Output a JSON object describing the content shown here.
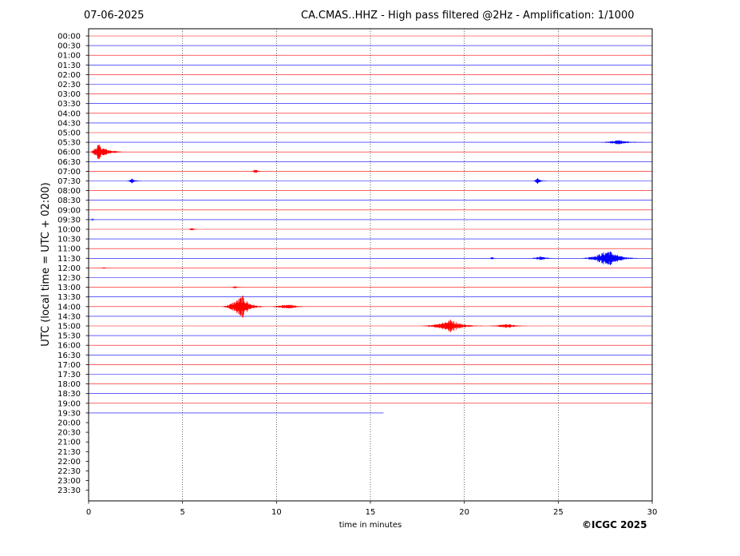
{
  "header": {
    "date": "07-06-2025",
    "title": "CA.CMAS..HHZ - High pass filtered @2Hz - Amplification: 1/1000"
  },
  "copyright": "©ICGC 2025",
  "colors": {
    "odd_rows": "#ff0000",
    "even_rows": "#0000ff",
    "grid": "#000000"
  },
  "chart_data": {
    "type": "line",
    "title": "CA.CMAS..HHZ - High pass filtered @2Hz - Amplification: 1/1000",
    "xlabel": "time in minutes",
    "ylabel": "UTC (local time = UTC + 02:00)",
    "xlim": [
      0,
      30
    ],
    "x_ticks": [
      "0",
      "5",
      "10",
      "15",
      "20",
      "25",
      "30"
    ],
    "rows": [
      "00:00",
      "00:30",
      "01:00",
      "01:30",
      "02:00",
      "02:30",
      "03:00",
      "03:30",
      "04:00",
      "04:30",
      "05:00",
      "05:30",
      "06:00",
      "06:30",
      "07:00",
      "07:30",
      "08:00",
      "08:30",
      "09:00",
      "09:30",
      "10:00",
      "10:30",
      "11:00",
      "11:30",
      "12:00",
      "12:30",
      "13:00",
      "13:30",
      "14:00",
      "14:30",
      "15:00",
      "15:30",
      "16:00",
      "16:30",
      "17:00",
      "17:30",
      "18:00",
      "18:30",
      "19:00",
      "19:30",
      "20:00",
      "20:30",
      "21:00",
      "21:30",
      "22:00",
      "22:30",
      "23:00",
      "23:30"
    ],
    "trace_end_minutes": {
      "19:30": 15.7
    },
    "events": [
      {
        "row": "05:30",
        "start": 27.0,
        "end": 30.0,
        "peak": 28.2,
        "amp": 0.25
      },
      {
        "row": "06:00",
        "start": 0.0,
        "end": 2.0,
        "peak": 0.5,
        "amp": 0.85
      },
      {
        "row": "07:00",
        "start": 8.6,
        "end": 9.2,
        "peak": 8.9,
        "amp": 0.25
      },
      {
        "row": "07:30",
        "start": 2.0,
        "end": 2.8,
        "peak": 2.3,
        "amp": 0.3
      },
      {
        "row": "07:30",
        "start": 23.6,
        "end": 24.4,
        "peak": 23.9,
        "amp": 0.3
      },
      {
        "row": "09:30",
        "start": 0.0,
        "end": 0.4,
        "peak": 0.2,
        "amp": 0.12
      },
      {
        "row": "10:00",
        "start": 5.3,
        "end": 5.8,
        "peak": 5.5,
        "amp": 0.25
      },
      {
        "row": "11:30",
        "start": 21.2,
        "end": 21.8,
        "peak": 21.5,
        "amp": 0.15
      },
      {
        "row": "11:30",
        "start": 23.3,
        "end": 25.3,
        "peak": 24.0,
        "amp": 0.2
      },
      {
        "row": "11:30",
        "start": 26.0,
        "end": 29.3,
        "peak": 27.7,
        "amp": 0.9
      },
      {
        "row": "12:00",
        "start": 0.6,
        "end": 1.1,
        "peak": 0.8,
        "amp": 0.1
      },
      {
        "row": "13:00",
        "start": 7.5,
        "end": 8.2,
        "peak": 7.8,
        "amp": 0.15
      },
      {
        "row": "14:00",
        "start": 6.9,
        "end": 9.3,
        "peak": 8.2,
        "amp": 1.2
      },
      {
        "row": "14:00",
        "start": 9.3,
        "end": 11.8,
        "peak": 10.7,
        "amp": 0.28
      },
      {
        "row": "15:00",
        "start": 17.5,
        "end": 21.0,
        "peak": 19.3,
        "amp": 0.7
      },
      {
        "row": "15:00",
        "start": 21.0,
        "end": 23.5,
        "peak": 22.3,
        "amp": 0.25
      }
    ]
  }
}
